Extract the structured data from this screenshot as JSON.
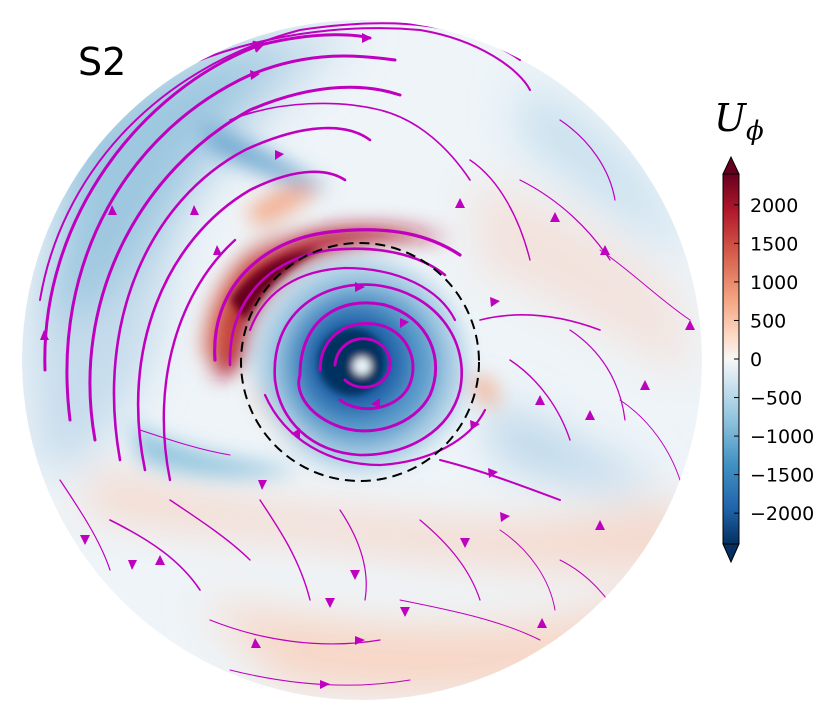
{
  "panel_label": "S2",
  "colorbar": {
    "title_main": "U",
    "title_sub": "ϕ",
    "colormap": "RdBu_r",
    "colors": [
      "#053061",
      "#2166ac",
      "#4393c3",
      "#92c5de",
      "#d1e5f0",
      "#f7f7f7",
      "#fddbc7",
      "#f4a582",
      "#d6604d",
      "#b2182b",
      "#67001f"
    ],
    "extend": "both",
    "vmin": -2400,
    "vmax": 2400
  },
  "chart_data": {
    "type": "heatmap",
    "title": "S2",
    "projection": "polar disc",
    "field": "U_phi",
    "colorbar_ticks": [
      2000,
      1500,
      1000,
      500,
      0,
      -500,
      -1000,
      -1500,
      -2000
    ],
    "colorbar_tick_labels": [
      "2000",
      "1500",
      "1000",
      "500",
      "0",
      "−500",
      "−1000",
      "−1500",
      "−2000"
    ],
    "overlay": "streamlines",
    "streamline_color": "#bf00bf",
    "reference_circle_style": "dashed black"
  }
}
